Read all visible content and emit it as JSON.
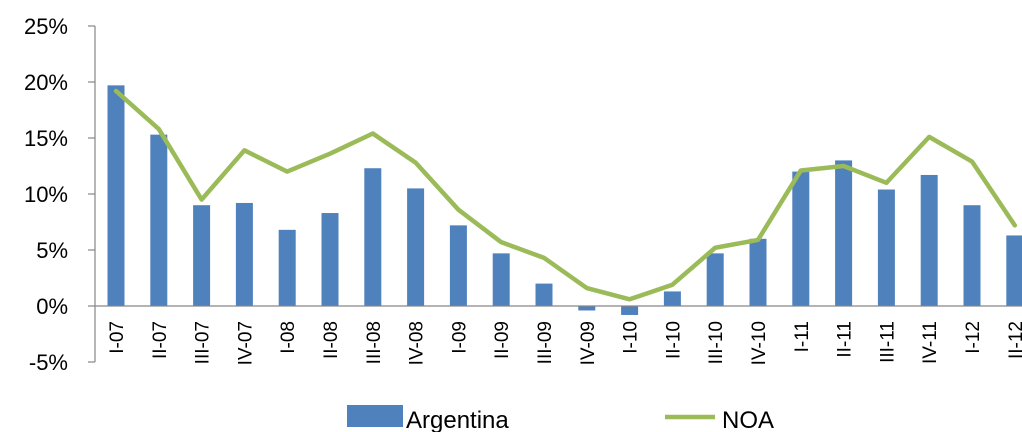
{
  "chart_data": {
    "type": "bar",
    "categories": [
      "I-07",
      "II-07",
      "III-07",
      "IV-07",
      "I-08",
      "II-08",
      "III-08",
      "IV-08",
      "I-09",
      "II-09",
      "III-09",
      "IV-09",
      "I-10",
      "II-10",
      "III-10",
      "IV-10",
      "I-11",
      "II-11",
      "III-11",
      "IV-11",
      "I-12",
      "II-12"
    ],
    "series": [
      {
        "name": "Argentina",
        "type": "bar",
        "color": "#4F81BD",
        "values": [
          19.7,
          15.3,
          9.0,
          9.2,
          6.8,
          8.3,
          12.3,
          10.5,
          7.2,
          4.7,
          2.0,
          -0.4,
          -0.8,
          1.3,
          4.7,
          6.0,
          12.0,
          13.0,
          10.4,
          11.7,
          9.0,
          6.3
        ]
      },
      {
        "name": "NOA",
        "type": "line",
        "color": "#9BBB59",
        "values": [
          19.2,
          15.8,
          9.5,
          13.9,
          12.0,
          13.6,
          15.4,
          12.8,
          8.6,
          5.7,
          4.3,
          1.6,
          0.6,
          1.9,
          5.2,
          5.9,
          12.1,
          12.5,
          11.0,
          15.1,
          12.9,
          7.2
        ]
      }
    ],
    "y_ticks": [
      "-5%",
      "0%",
      "5%",
      "10%",
      "15%",
      "20%",
      "25%"
    ],
    "ylim": [
      -5,
      25
    ],
    "y_tick_step": 5,
    "grid": false,
    "legend_position": "bottom"
  }
}
